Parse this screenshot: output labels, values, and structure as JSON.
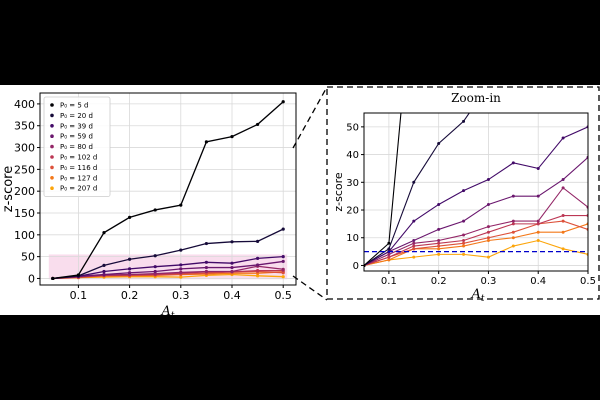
{
  "chart_data": [
    {
      "type": "line",
      "panel": "main",
      "x": [
        0.05,
        0.1,
        0.15,
        0.2,
        0.25,
        0.3,
        0.35,
        0.4,
        0.45,
        0.5
      ],
      "xticks": [
        0.1,
        0.2,
        0.3,
        0.4,
        0.5
      ],
      "yticks": [
        0,
        50,
        100,
        150,
        200,
        250,
        300,
        350,
        400
      ],
      "xlim": [
        0.025,
        0.525
      ],
      "ylim": [
        -15,
        425
      ],
      "xlabel": "A",
      "xlabel_sub": "t",
      "ylabel": "z-score",
      "grid": true,
      "legend_position": "upper-left",
      "shaded_band": [
        -2,
        55
      ],
      "series": [
        {
          "name": "P₀ = 5 d",
          "color": "#000004",
          "values": [
            0,
            8,
            105,
            140,
            157,
            168,
            313,
            325,
            353,
            405
          ]
        },
        {
          "name": "P₀ = 20 d",
          "color": "#160b39",
          "values": [
            0,
            6,
            30,
            44,
            52,
            65,
            80,
            84,
            85,
            113
          ]
        },
        {
          "name": "P₀ = 39 d",
          "color": "#420a68",
          "values": [
            0,
            5,
            16,
            22,
            27,
            31,
            37,
            35,
            46,
            50
          ]
        },
        {
          "name": "P₀ = 59 d",
          "color": "#6a176e",
          "values": [
            0,
            5,
            9,
            13,
            16,
            22,
            25,
            25,
            31,
            39
          ]
        },
        {
          "name": "P₀ = 80 d",
          "color": "#932667",
          "values": [
            0,
            4,
            8,
            9,
            11,
            14,
            16,
            16,
            28,
            21
          ]
        },
        {
          "name": "P₀ = 102 d",
          "color": "#bc3754",
          "values": [
            0,
            3,
            7,
            8,
            9,
            12,
            15,
            15,
            18,
            18
          ]
        },
        {
          "name": "P₀ = 116 d",
          "color": "#dd513a",
          "values": [
            0,
            3,
            6,
            7,
            8,
            10,
            12,
            15,
            16,
            13
          ]
        },
        {
          "name": "P₀ = 127 d",
          "color": "#f37819",
          "values": [
            0,
            2,
            6,
            6,
            7,
            9,
            10,
            12,
            12,
            15
          ]
        },
        {
          "name": "P₀ = 207 d",
          "color": "#fca50a",
          "values": [
            0,
            2,
            3,
            4,
            4,
            3,
            7,
            9,
            6,
            4
          ]
        }
      ]
    },
    {
      "type": "line",
      "panel": "zoom",
      "title": "Zoom-in",
      "x": [
        0.05,
        0.1,
        0.15,
        0.2,
        0.25,
        0.3,
        0.35,
        0.4,
        0.45,
        0.5
      ],
      "xticks": [
        0.1,
        0.2,
        0.3,
        0.4,
        0.5
      ],
      "yticks": [
        0,
        10,
        20,
        30,
        40,
        50
      ],
      "xlim": [
        0.05,
        0.5
      ],
      "ylim": [
        -2,
        55
      ],
      "xlabel": "A",
      "xlabel_sub": "t",
      "ylabel": "z-score",
      "grid": true,
      "reference_line": {
        "y": 5,
        "style": "dashed",
        "color": "#0000cc"
      }
    }
  ]
}
